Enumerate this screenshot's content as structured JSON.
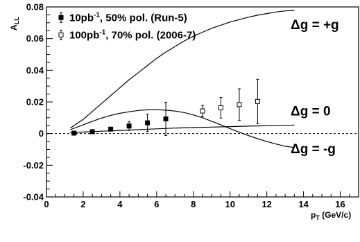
{
  "chart_data": {
    "type": "scatter",
    "xlabel": {
      "main": "p",
      "sub": "T",
      "unit": " (GeV/c)"
    },
    "ylabel": {
      "main": "A",
      "sub": "LL"
    },
    "xlim": [
      0,
      17
    ],
    "ylim": [
      -0.04,
      0.08
    ],
    "x_ticks": [
      0,
      2,
      4,
      6,
      8,
      10,
      12,
      14,
      16
    ],
    "y_ticks": [
      -0.04,
      -0.02,
      0,
      0.02,
      0.04,
      0.06,
      0.08
    ],
    "y_tick_labels": [
      "-0.04",
      "-0.02",
      "0",
      "0.02",
      "0.04",
      "0.06",
      "0.08"
    ],
    "zero_line": "dashed",
    "grid": false,
    "legend_position": "top-left",
    "series": [
      {
        "name": "10pb-1, 50% pol. (Run-5)",
        "legend_parts": [
          "10pb",
          "-1",
          ", 50% pol. (Run-5)"
        ],
        "marker": "filled-square",
        "points": [
          {
            "x": 1.5,
            "y": 0.0003,
            "err": 0.0005
          },
          {
            "x": 2.5,
            "y": 0.0012,
            "err": 0.0008
          },
          {
            "x": 3.5,
            "y": 0.0028,
            "err": 0.0012
          },
          {
            "x": 4.5,
            "y": 0.0048,
            "err": 0.0028
          },
          {
            "x": 5.5,
            "y": 0.0068,
            "err": 0.0055
          },
          {
            "x": 6.5,
            "y": 0.0093,
            "err": 0.0105
          }
        ]
      },
      {
        "name": "100pb-1, 70% pol. (2006-7)",
        "legend_parts": [
          "100pb",
          "-1",
          ", 70% pol. (2006-7)"
        ],
        "marker": "open-square",
        "points": [
          {
            "x": 8.5,
            "y": 0.0143,
            "err": 0.0035
          },
          {
            "x": 9.5,
            "y": 0.0163,
            "err": 0.0065
          },
          {
            "x": 10.5,
            "y": 0.0183,
            "err": 0.01
          },
          {
            "x": 11.5,
            "y": 0.0203,
            "err": 0.014
          }
        ]
      }
    ],
    "curves": [
      {
        "name": "Δg = +g",
        "points": [
          [
            1.3,
            0.0035
          ],
          [
            2,
            0.009
          ],
          [
            2.5,
            0.014
          ],
          [
            3,
            0.019
          ],
          [
            3.5,
            0.024
          ],
          [
            4,
            0.029
          ],
          [
            4.5,
            0.034
          ],
          [
            5,
            0.0385
          ],
          [
            5.5,
            0.043
          ],
          [
            6,
            0.0475
          ],
          [
            6.5,
            0.0515
          ],
          [
            7,
            0.055
          ],
          [
            7.5,
            0.0585
          ],
          [
            8,
            0.0615
          ],
          [
            8.5,
            0.064
          ],
          [
            9,
            0.0665
          ],
          [
            9.5,
            0.0685
          ],
          [
            10,
            0.0705
          ],
          [
            10.5,
            0.072
          ],
          [
            11,
            0.0735
          ],
          [
            11.5,
            0.0748
          ],
          [
            12,
            0.0758
          ],
          [
            12.5,
            0.0768
          ],
          [
            13,
            0.0775
          ],
          [
            13.5,
            0.0778
          ]
        ]
      },
      {
        "name": "Δg = 0",
        "points": [
          [
            1.3,
            0.0005
          ],
          [
            2,
            0.001
          ],
          [
            3,
            0.0015
          ],
          [
            4,
            0.002
          ],
          [
            5,
            0.0025
          ],
          [
            6,
            0.003
          ],
          [
            7,
            0.0035
          ],
          [
            8,
            0.0038
          ],
          [
            9,
            0.0041
          ],
          [
            10,
            0.0044
          ],
          [
            11,
            0.0047
          ],
          [
            12,
            0.005
          ],
          [
            13,
            0.0052
          ],
          [
            13.5,
            0.0054
          ]
        ]
      },
      {
        "name": "Δg = -g",
        "points": [
          [
            1.3,
            0.0025
          ],
          [
            2,
            0.0055
          ],
          [
            2.5,
            0.0078
          ],
          [
            3,
            0.0098
          ],
          [
            3.5,
            0.0115
          ],
          [
            4,
            0.0128
          ],
          [
            4.5,
            0.0138
          ],
          [
            5,
            0.0146
          ],
          [
            5.5,
            0.015
          ],
          [
            6,
            0.0151
          ],
          [
            6.5,
            0.0148
          ],
          [
            7,
            0.0142
          ],
          [
            7.5,
            0.0133
          ],
          [
            8,
            0.0118
          ],
          [
            8.5,
            0.01
          ],
          [
            9,
            0.0078
          ],
          [
            9.5,
            0.0055
          ],
          [
            10,
            0.0031
          ],
          [
            10.5,
            0.0009
          ],
          [
            11,
            -0.0013
          ],
          [
            11.5,
            -0.0032
          ],
          [
            12,
            -0.005
          ],
          [
            12.5,
            -0.0066
          ],
          [
            13,
            -0.008
          ],
          [
            13.5,
            -0.0088
          ]
        ]
      }
    ],
    "annotations": [
      {
        "text": "Δg = +g",
        "x": 13.3,
        "y": 0.066
      },
      {
        "text": "Δg = 0",
        "x": 13.3,
        "y": 0.0115
      },
      {
        "text": "Δg = -g",
        "x": 13.3,
        "y": -0.0125
      }
    ]
  }
}
